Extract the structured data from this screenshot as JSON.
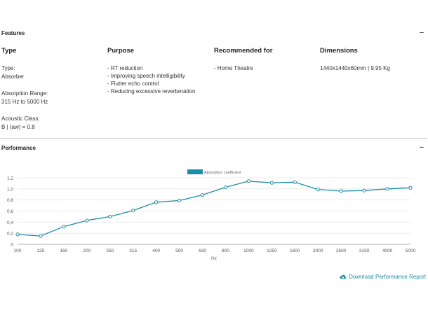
{
  "features": {
    "title": "Features",
    "toggle": "−",
    "columns": {
      "type": {
        "heading": "Type",
        "fields": [
          {
            "label": "Type:",
            "value": "Absorber"
          },
          {
            "label": "Absorption Range:",
            "value": "315 Hz to 5000 Hz"
          },
          {
            "label": "Acoustic Class:",
            "value": "B | (aw) = 0.8"
          }
        ]
      },
      "purpose": {
        "heading": "Purpose",
        "items": [
          "- RT reduction",
          "- Improving speech intelligibility",
          "- Flutter echo control",
          "- Reducing excessive reverberation"
        ]
      },
      "recommended": {
        "heading": "Recommended for",
        "items": [
          "- Home Theatre"
        ]
      },
      "dimensions": {
        "heading": "Dimensions",
        "value": "1440x1440x60mm | 9.95 Kg"
      }
    }
  },
  "performance": {
    "title": "Performance",
    "toggle": "−"
  },
  "chart_data": {
    "type": "line",
    "categories": [
      "100",
      "125",
      "160",
      "200",
      "250",
      "315",
      "400",
      "500",
      "630",
      "800",
      "1000",
      "1250",
      "1600",
      "2000",
      "2500",
      "3150",
      "4000",
      "5000"
    ],
    "series": [
      {
        "name": "Absorption coefficient",
        "values": [
          0.18,
          0.15,
          0.32,
          0.43,
          0.5,
          0.61,
          0.76,
          0.79,
          0.89,
          1.03,
          1.14,
          1.11,
          1.12,
          0.99,
          0.96,
          0.97,
          1.0,
          1.02
        ]
      }
    ],
    "y_ticks": [
      "0",
      "0,2",
      "0,4",
      "0,6",
      "0,8",
      "1,0",
      "1,2"
    ],
    "ylim": [
      0,
      1.2
    ],
    "xlabel": "Hz",
    "ylabel": "",
    "grid": true,
    "legend_position": "top-center",
    "color": "#1a8fa8"
  },
  "download": {
    "label": "Download Performance Report",
    "icon": "cloud-download-icon"
  }
}
